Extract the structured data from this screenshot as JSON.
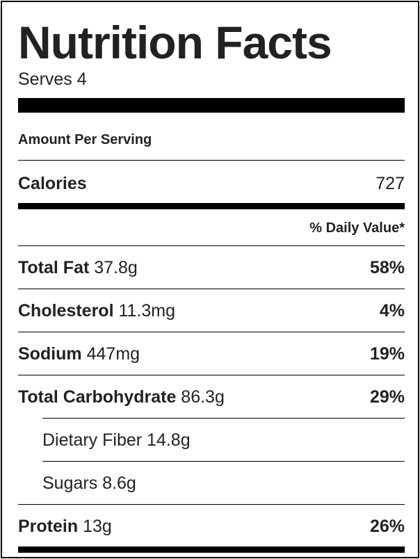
{
  "header": {
    "title": "Nutrition Facts",
    "serves": "Serves 4"
  },
  "amount_per_serving": "Amount Per Serving",
  "calories": {
    "label": "Calories",
    "value": "727"
  },
  "daily_value_header": "% Daily Value*",
  "nutrients": [
    {
      "name": "Total Fat",
      "amount": "37.8g",
      "percent": "58%"
    },
    {
      "name": "Cholesterol",
      "amount": "11.3mg",
      "percent": "4%"
    },
    {
      "name": "Sodium",
      "amount": "447mg",
      "percent": "19%"
    },
    {
      "name": "Total Carbohydrate",
      "amount": "86.3g",
      "percent": "29%"
    },
    {
      "name": "Dietary Fiber",
      "amount": "14.8g",
      "percent": ""
    },
    {
      "name": "Sugars",
      "amount": "8.6g",
      "percent": ""
    },
    {
      "name": "Protein",
      "amount": "13g",
      "percent": "26%"
    }
  ]
}
